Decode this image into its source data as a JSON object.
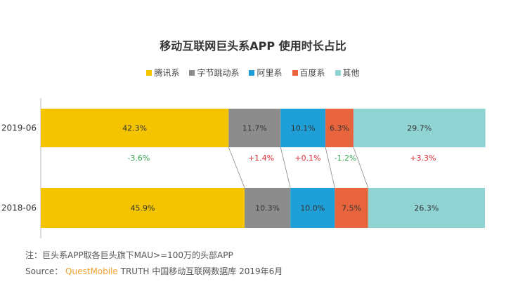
{
  "chart_data": {
    "type": "bar",
    "orientation": "horizontal-stacked-100",
    "title": "移动互联网巨头系APP 使用时长占比",
    "categories": [
      "2019-06",
      "2018-06"
    ],
    "series": [
      {
        "name": "腾讯系",
        "color": "#F5C400",
        "values": [
          42.3,
          45.9
        ],
        "change": "-3.6%",
        "change_color": "#3aa655"
      },
      {
        "name": "字节跳动系",
        "color": "#8C8C8C",
        "values": [
          11.7,
          10.3
        ],
        "change": "+1.4%",
        "change_color": "#e0303a"
      },
      {
        "name": "阿里系",
        "color": "#1E9FD8",
        "values": [
          10.1,
          10.0
        ],
        "change": "+0.1%",
        "change_color": "#e0303a"
      },
      {
        "name": "百度系",
        "color": "#E8643C",
        "values": [
          6.3,
          7.5
        ],
        "change": "-1.2%",
        "change_color": "#3aa655"
      },
      {
        "name": "其他",
        "color": "#8FD3D3",
        "values": [
          29.7,
          26.3
        ],
        "change": "+3.3%",
        "change_color": "#e0303a"
      }
    ],
    "legend_position": "top",
    "grid": false
  },
  "notes": {
    "note": "注：巨头系APP取各巨头旗下MAU>=100万的头部APP",
    "source_prefix": "Source：",
    "source_brand": "QuestMobile",
    "source_rest": "TRUTH 中国移动互联网数据库 2019年6月"
  }
}
